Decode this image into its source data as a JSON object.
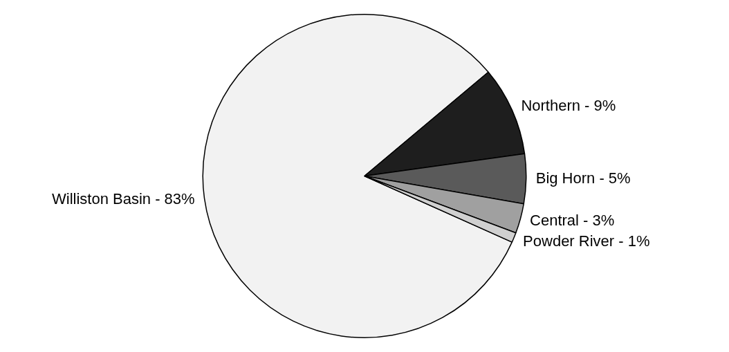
{
  "chart_data": {
    "type": "pie",
    "categories": [
      "Williston Basin",
      "Northern",
      "Big Horn",
      "Central",
      "Powder River"
    ],
    "values": [
      83,
      9,
      5,
      3,
      1
    ],
    "value_labels": [
      "83%",
      "9%",
      "5%",
      "3%",
      "1%"
    ],
    "colors": [
      "#f2f2f2",
      "#1e1e1e",
      "#5a5a5a",
      "#a0a0a0",
      "#d0d0d0"
    ],
    "legend": false
  }
}
